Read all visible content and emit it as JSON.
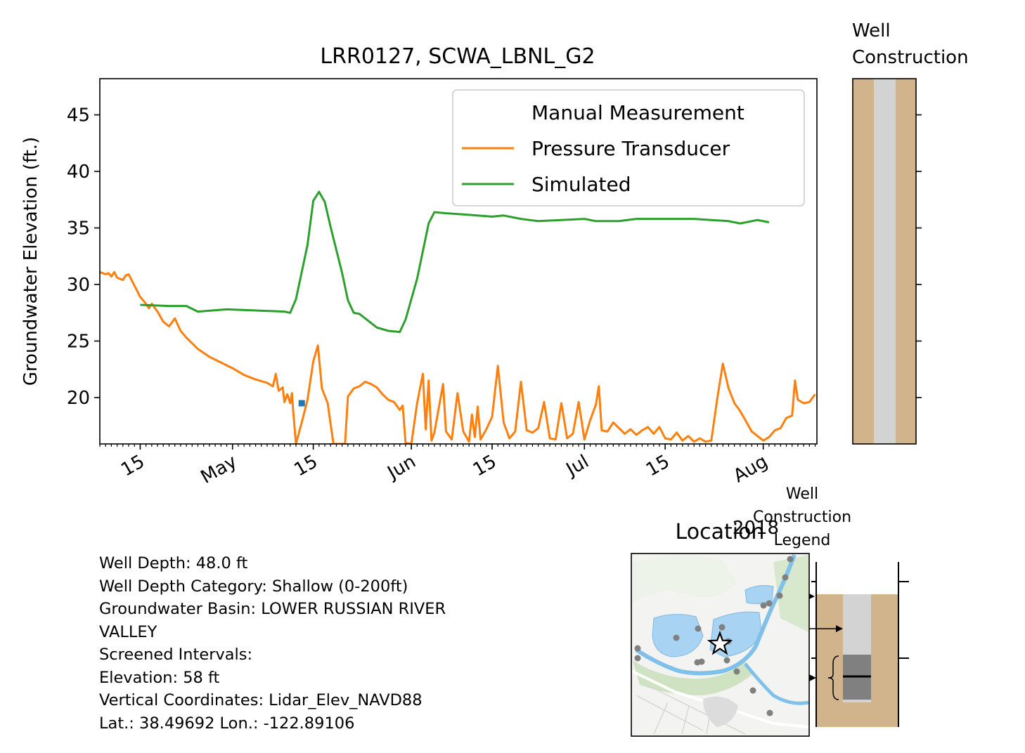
{
  "chart_data": [
    {
      "type": "line",
      "title": "LRR0127, SCWA_LBNL_G2",
      "xlabel": "",
      "ylabel": "Groundwater Elevation (ft.)",
      "ylim": [
        15.9,
        48.2
      ],
      "xlim": [
        "2018-04-08",
        "2018-08-06"
      ],
      "yticks": [
        20,
        25,
        30,
        35,
        40,
        45
      ],
      "xticks": [
        {
          "date": "2018-04-15",
          "label": "15"
        },
        {
          "date": "2018-05-01",
          "label": "May"
        },
        {
          "date": "2018-05-15",
          "label": "15"
        },
        {
          "date": "2018-06-01",
          "label": "Jun"
        },
        {
          "date": "2018-06-15",
          "label": "15"
        },
        {
          "date": "2018-07-01",
          "label": "Jul"
        },
        {
          "date": "2018-07-15",
          "label": "15"
        },
        {
          "date": "2018-08-01",
          "label": "Aug"
        }
      ],
      "xaxis_year_label": "2018",
      "legend": {
        "placement": "top-right",
        "entries": [
          "Manual Measurement",
          "Pressure Transducer",
          "Simulated"
        ]
      },
      "grid": false,
      "series": [
        {
          "name": "Manual Measurement",
          "color": "#1f77b4",
          "marker": "square",
          "points": [
            [
              "2018-05-13",
              19.5
            ]
          ]
        },
        {
          "name": "Pressure Transducer",
          "color": "#ff7f0e",
          "points": [
            [
              "2018-04-08",
              31.1
            ],
            [
              "2018-04-09",
              30.9
            ],
            [
              "2018-04-09.5",
              31.0
            ],
            [
              "2018-04-10",
              30.7
            ],
            [
              "2018-04-10.5",
              31.1
            ],
            [
              "2018-04-11",
              30.6
            ],
            [
              "2018-04-12",
              30.4
            ],
            [
              "2018-04-12.5",
              30.8
            ],
            [
              "2018-04-13",
              30.9
            ],
            [
              "2018-04-14",
              29.9
            ],
            [
              "2018-04-15",
              28.9
            ],
            [
              "2018-04-16",
              28.3
            ],
            [
              "2018-04-16.5",
              27.9
            ],
            [
              "2018-04-17",
              28.3
            ],
            [
              "2018-04-18",
              27.6
            ],
            [
              "2018-04-19",
              26.7
            ],
            [
              "2018-04-20",
              26.3
            ],
            [
              "2018-04-21",
              27.0
            ],
            [
              "2018-04-22",
              25.9
            ],
            [
              "2018-04-23",
              25.3
            ],
            [
              "2018-04-25",
              24.3
            ],
            [
              "2018-04-27",
              23.6
            ],
            [
              "2018-04-29",
              23.1
            ],
            [
              "2018-05-01",
              22.6
            ],
            [
              "2018-05-03",
              22.0
            ],
            [
              "2018-05-05",
              21.6
            ],
            [
              "2018-05-07",
              21.3
            ],
            [
              "2018-05-08",
              21.0
            ],
            [
              "2018-05-08.5",
              22.1
            ],
            [
              "2018-05-09",
              20.6
            ],
            [
              "2018-05-09.7",
              20.9
            ],
            [
              "2018-05-10",
              19.6
            ],
            [
              "2018-05-10.5",
              20.3
            ],
            [
              "2018-05-11",
              19.5
            ],
            [
              "2018-05-11.3",
              20.4
            ],
            [
              "2018-05-11.5",
              18.9
            ],
            [
              "2018-05-12",
              15.9
            ],
            [
              "2018-05-13",
              17.8
            ],
            [
              "2018-05-14",
              19.8
            ],
            [
              "2018-05-15",
              23.2
            ],
            [
              "2018-05-15.8",
              24.6
            ],
            [
              "2018-05-16.5",
              20.8
            ],
            [
              "2018-05-17.5",
              19.5
            ],
            [
              "2018-05-18.5",
              15.9
            ],
            [
              "2018-05-20.5",
              15.9
            ],
            [
              "2018-05-21",
              20.1
            ],
            [
              "2018-05-22",
              20.8
            ],
            [
              "2018-05-23",
              21.0
            ],
            [
              "2018-05-24",
              21.4
            ],
            [
              "2018-05-25",
              21.2
            ],
            [
              "2018-05-26",
              20.9
            ],
            [
              "2018-05-27",
              20.3
            ],
            [
              "2018-05-28",
              19.8
            ],
            [
              "2018-05-29",
              19.6
            ],
            [
              "2018-05-30",
              18.9
            ],
            [
              "2018-05-30.5",
              19.3
            ],
            [
              "2018-05-31",
              16.0
            ],
            [
              "2018-06-01",
              15.9
            ],
            [
              "2018-06-02",
              19.5
            ],
            [
              "2018-06-03",
              22.1
            ],
            [
              "2018-06-03.5",
              17.2
            ],
            [
              "2018-06-04",
              21.5
            ],
            [
              "2018-06-04.5",
              16.2
            ],
            [
              "2018-06-05",
              16.9
            ],
            [
              "2018-06-06",
              19.8
            ],
            [
              "2018-06-06.5",
              21.2
            ],
            [
              "2018-06-07",
              17.0
            ],
            [
              "2018-06-08",
              16.3
            ],
            [
              "2018-06-09",
              20.4
            ],
            [
              "2018-06-10",
              17.0
            ],
            [
              "2018-06-11",
              16.1
            ],
            [
              "2018-06-11.5",
              18.5
            ],
            [
              "2018-06-12",
              16.5
            ],
            [
              "2018-06-12.5",
              19.2
            ],
            [
              "2018-06-13",
              16.3
            ],
            [
              "2018-06-14",
              17.2
            ],
            [
              "2018-06-15",
              18.3
            ],
            [
              "2018-06-16",
              22.8
            ],
            [
              "2018-06-17",
              17.8
            ],
            [
              "2018-06-18",
              16.4
            ],
            [
              "2018-06-19",
              17.0
            ],
            [
              "2018-06-20",
              21.4
            ],
            [
              "2018-06-21",
              17.1
            ],
            [
              "2018-06-22",
              16.9
            ],
            [
              "2018-06-23",
              17.3
            ],
            [
              "2018-06-24",
              19.6
            ],
            [
              "2018-06-25",
              16.4
            ],
            [
              "2018-06-26",
              16.3
            ],
            [
              "2018-06-27",
              19.5
            ],
            [
              "2018-06-28",
              16.4
            ],
            [
              "2018-06-29",
              16.8
            ],
            [
              "2018-06-30",
              19.6
            ],
            [
              "2018-07-01",
              16.3
            ],
            [
              "2018-07-02",
              18.0
            ],
            [
              "2018-07-03",
              19.4
            ],
            [
              "2018-07-03.5",
              21.0
            ],
            [
              "2018-07-04",
              17.1
            ],
            [
              "2018-07-05",
              17.0
            ],
            [
              "2018-07-06",
              17.8
            ],
            [
              "2018-07-07",
              17.3
            ],
            [
              "2018-07-08",
              16.8
            ],
            [
              "2018-07-09",
              17.2
            ],
            [
              "2018-07-10",
              16.7
            ],
            [
              "2018-07-11",
              17.1
            ],
            [
              "2018-07-12",
              17.4
            ],
            [
              "2018-07-13",
              16.8
            ],
            [
              "2018-07-14",
              17.4
            ],
            [
              "2018-07-15",
              16.4
            ],
            [
              "2018-07-16",
              16.3
            ],
            [
              "2018-07-17",
              16.9
            ],
            [
              "2018-07-18",
              16.2
            ],
            [
              "2018-07-19",
              16.6
            ],
            [
              "2018-07-20",
              16.1
            ],
            [
              "2018-07-21",
              16.4
            ],
            [
              "2018-07-22",
              16.1
            ],
            [
              "2018-07-23",
              16.2
            ],
            [
              "2018-07-24",
              19.8
            ],
            [
              "2018-07-25",
              23.0
            ],
            [
              "2018-07-26",
              20.8
            ],
            [
              "2018-07-27",
              19.5
            ],
            [
              "2018-07-28",
              18.8
            ],
            [
              "2018-07-29",
              17.9
            ],
            [
              "2018-07-30",
              17.0
            ],
            [
              "2018-07-31",
              16.6
            ],
            [
              "2018-08-01",
              16.2
            ],
            [
              "2018-08-02",
              16.5
            ],
            [
              "2018-08-03",
              17.1
            ],
            [
              "2018-08-04",
              17.3
            ],
            [
              "2018-08-05",
              18.2
            ],
            [
              "2018-08-06",
              18.4
            ],
            [
              "2018-08-06.5",
              21.5
            ],
            [
              "2018-08-07",
              19.8
            ],
            [
              "2018-08-08",
              19.5
            ],
            [
              "2018-08-09",
              19.6
            ],
            [
              "2018-08-10",
              20.3
            ]
          ]
        },
        {
          "name": "Simulated",
          "color": "#2ca02c",
          "points": [
            [
              "2018-04-15",
              28.2
            ],
            [
              "2018-04-20",
              28.1
            ],
            [
              "2018-04-23",
              28.1
            ],
            [
              "2018-04-25",
              27.6
            ],
            [
              "2018-04-30",
              27.8
            ],
            [
              "2018-05-05",
              27.7
            ],
            [
              "2018-05-10",
              27.6
            ],
            [
              "2018-05-11",
              27.5
            ],
            [
              "2018-05-12",
              28.7
            ],
            [
              "2018-05-14",
              33.5
            ],
            [
              "2018-05-15",
              37.4
            ],
            [
              "2018-05-16",
              38.2
            ],
            [
              "2018-05-17",
              37.3
            ],
            [
              "2018-05-18",
              35.1
            ],
            [
              "2018-05-20",
              31.0
            ],
            [
              "2018-05-21",
              28.6
            ],
            [
              "2018-05-22",
              27.5
            ],
            [
              "2018-05-23",
              27.4
            ],
            [
              "2018-05-24",
              27.0
            ],
            [
              "2018-05-26",
              26.2
            ],
            [
              "2018-05-28",
              25.9
            ],
            [
              "2018-05-30",
              25.8
            ],
            [
              "2018-05-31",
              26.9
            ],
            [
              "2018-06-02",
              30.5
            ],
            [
              "2018-06-04",
              35.4
            ],
            [
              "2018-06-05",
              36.4
            ],
            [
              "2018-06-07",
              36.3
            ],
            [
              "2018-06-10",
              36.2
            ],
            [
              "2018-06-15",
              36.0
            ],
            [
              "2018-06-17",
              36.1
            ],
            [
              "2018-06-20",
              35.8
            ],
            [
              "2018-06-23",
              35.6
            ],
            [
              "2018-06-27",
              35.7
            ],
            [
              "2018-07-01",
              35.8
            ],
            [
              "2018-07-03",
              35.6
            ],
            [
              "2018-07-07",
              35.6
            ],
            [
              "2018-07-10",
              35.8
            ],
            [
              "2018-07-15",
              35.8
            ],
            [
              "2018-07-18",
              35.8
            ],
            [
              "2018-07-20",
              35.8
            ],
            [
              "2018-07-23",
              35.7
            ],
            [
              "2018-07-26",
              35.6
            ],
            [
              "2018-07-28",
              35.4
            ],
            [
              "2018-07-31",
              35.7
            ],
            [
              "2018-08-02",
              35.5
            ]
          ]
        }
      ]
    },
    {
      "type": "other",
      "title": "Well\nConstruction",
      "title_lines": [
        "Well",
        "Construction"
      ],
      "subtype": "well-construction-column",
      "colors": {
        "soil": "#d2b48c",
        "casing": "#d3d3d3"
      }
    },
    {
      "type": "other",
      "title": "Location",
      "subtype": "location-map",
      "marker": "star",
      "neighbor_well_color": "#808080"
    },
    {
      "type": "other",
      "title": "Well Construction Legend",
      "title_lines": [
        "Well",
        "Construction",
        "Legend"
      ],
      "subtype": "legend-diagram",
      "colors": {
        "soil": "#d2b48c",
        "casing": "#d3d3d3",
        "screen": "#808080"
      }
    }
  ],
  "info": {
    "lines": [
      "Well Depth: 48.0 ft",
      "Well Depth Category: Shallow (0-200ft)",
      "Groundwater Basin: LOWER RUSSIAN RIVER",
      "VALLEY",
      "Screened Intervals:",
      "Elevation: 58 ft",
      "Vertical Coordinates: Lidar_Elev_NAVD88",
      "Lat.: 38.49692 Lon.: -122.89106"
    ]
  }
}
